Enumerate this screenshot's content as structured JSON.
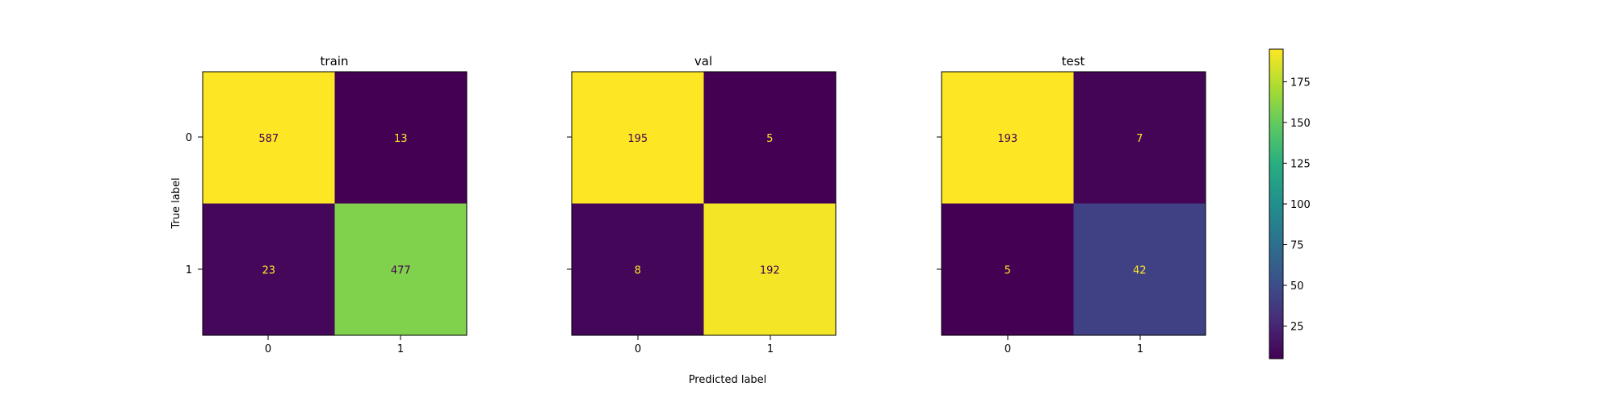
{
  "chart_data": {
    "type": "heatmap",
    "xlabel": "Predicted label",
    "ylabel": "True label",
    "x_tick_labels": [
      "0",
      "1"
    ],
    "y_tick_labels": [
      "0",
      "1"
    ],
    "colormap": "viridis",
    "panels": [
      {
        "title": "train",
        "matrix": [
          [
            587,
            13
          ],
          [
            23,
            477
          ]
        ]
      },
      {
        "title": "val",
        "matrix": [
          [
            195,
            5
          ],
          [
            8,
            192
          ]
        ]
      },
      {
        "title": "test",
        "matrix": [
          [
            193,
            7
          ],
          [
            5,
            42
          ]
        ]
      }
    ],
    "colorbar": {
      "range": [
        5,
        195
      ],
      "ticks": [
        25,
        50,
        75,
        100,
        125,
        150,
        175
      ],
      "tick_labels": [
        "25",
        "50",
        "75",
        "100",
        "125",
        "150",
        "175"
      ]
    },
    "colors": {
      "dark_text": "#440154",
      "light_text": "#fde725"
    }
  }
}
